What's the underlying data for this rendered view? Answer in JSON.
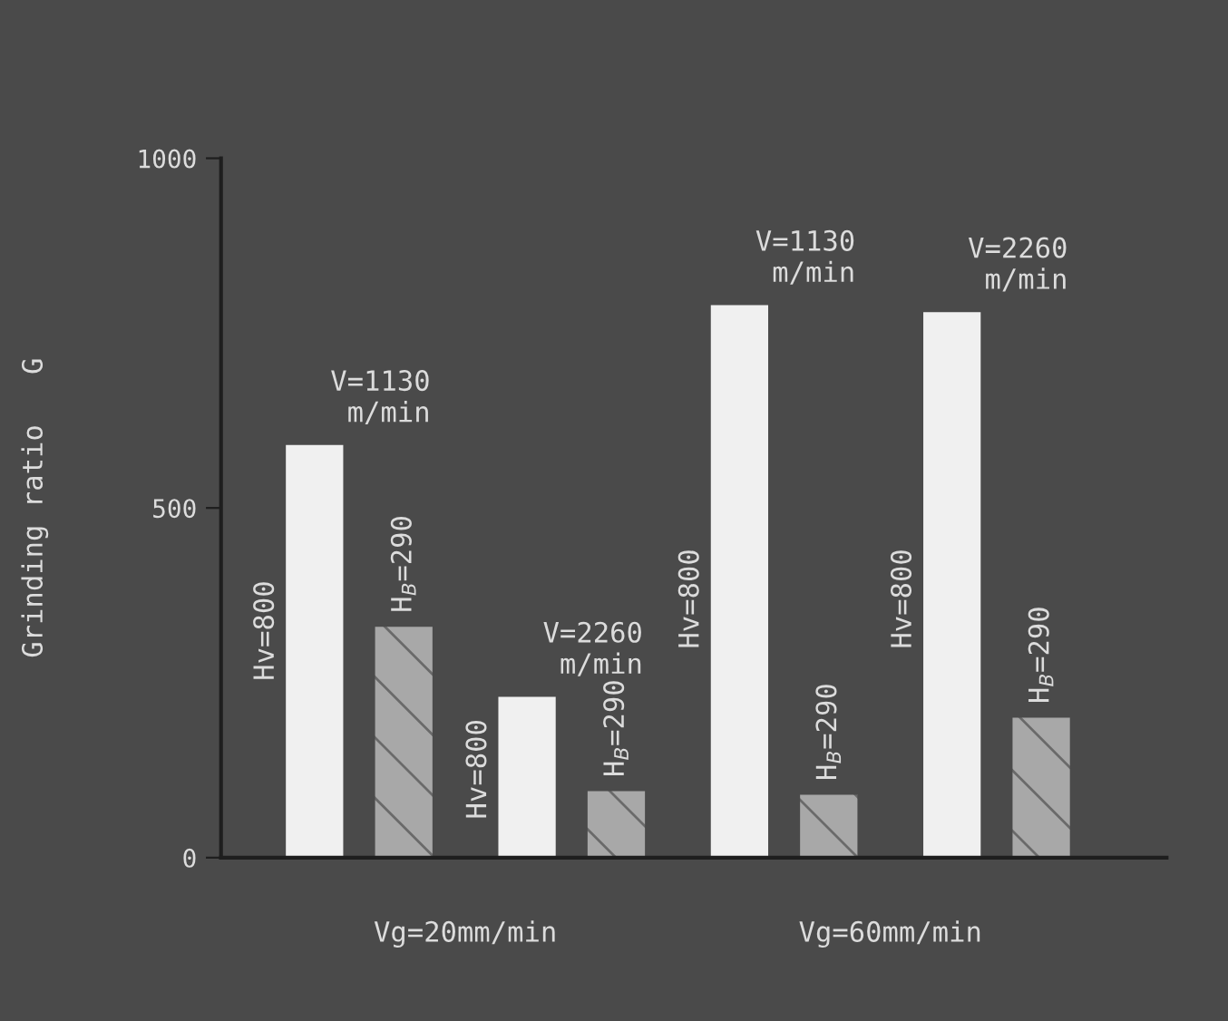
{
  "chart_data": {
    "type": "bar",
    "ylabel": "Grinding ratio   G",
    "categories": [
      "V=1130\nm/min",
      "V=2260\nm/min",
      "V=1130\nm/min",
      "V=2260\nm/min"
    ],
    "series": [
      {
        "name": "Hv=800",
        "color": "#f0f0f0",
        "values": [
          590,
          230,
          790,
          780
        ]
      },
      {
        "name": "H$_{B}$=290",
        "color": "#a8a8a8",
        "values": [
          330,
          95,
          90,
          200
        ]
      }
    ],
    "ylim": [
      0,
      1000
    ],
    "yticks": [
      0,
      500,
      1000
    ],
    "grid": false,
    "legend": false,
    "annotations": [
      "Vg=20mm/min",
      "Vg=60mm/min"
    ]
  }
}
